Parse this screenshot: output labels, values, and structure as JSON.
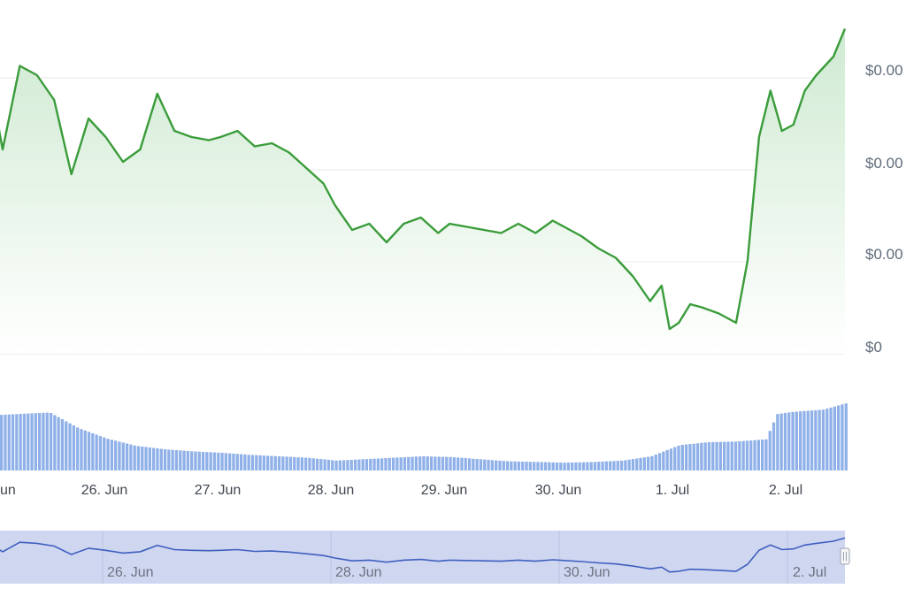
{
  "chart_data": {
    "type": "area",
    "subtype": "price-with-volume",
    "yaxis": {
      "position": "right",
      "tick_labels": [
        "$0.00",
        "$0.00",
        "$0.00",
        "$0"
      ],
      "grid": true
    },
    "price_series": {
      "color": "#3a9c3a",
      "fill_top": "#cfead2",
      "days": [
        25.0,
        25.1,
        25.25,
        25.4,
        25.55,
        25.7,
        25.85,
        26.0,
        26.15,
        26.3,
        26.45,
        26.6,
        26.75,
        26.9,
        27.0,
        27.15,
        27.3,
        27.45,
        27.6,
        27.75,
        27.9,
        28.0,
        28.15,
        28.3,
        28.45,
        28.6,
        28.75,
        28.9,
        29.0,
        29.15,
        29.3,
        29.45,
        29.6,
        29.75,
        29.9,
        30.0,
        30.15,
        30.3,
        30.45,
        30.6,
        30.75,
        30.85,
        30.92,
        31.0,
        31.1,
        31.2,
        31.35,
        31.5,
        31.6,
        31.7,
        31.8,
        31.9,
        32.0,
        32.1,
        32.2,
        32.35,
        32.45
      ],
      "relative_values": [
        0.86,
        0.66,
        0.93,
        0.9,
        0.82,
        0.58,
        0.76,
        0.7,
        0.62,
        0.66,
        0.84,
        0.72,
        0.7,
        0.69,
        0.7,
        0.72,
        0.67,
        0.68,
        0.65,
        0.6,
        0.55,
        0.48,
        0.4,
        0.42,
        0.36,
        0.42,
        0.44,
        0.39,
        0.42,
        0.41,
        0.4,
        0.39,
        0.42,
        0.39,
        0.43,
        0.41,
        0.38,
        0.34,
        0.31,
        0.25,
        0.17,
        0.22,
        0.08,
        0.1,
        0.16,
        0.15,
        0.13,
        0.1,
        0.3,
        0.7,
        0.85,
        0.72,
        0.74,
        0.85,
        0.9,
        0.96,
        1.05
      ]
    },
    "volume_series": {
      "color": "#8fb0e8",
      "days": [
        25.0,
        25.25,
        25.5,
        25.75,
        26.0,
        26.25,
        26.5,
        26.75,
        27.0,
        27.25,
        27.5,
        27.75,
        28.0,
        28.25,
        28.5,
        28.75,
        29.0,
        29.25,
        29.5,
        29.75,
        30.0,
        30.25,
        30.5,
        30.75,
        31.0,
        31.25,
        31.5,
        31.75,
        31.85,
        32.0,
        32.25,
        32.45
      ],
      "relative_values": [
        0.78,
        0.8,
        0.82,
        0.6,
        0.45,
        0.35,
        0.3,
        0.27,
        0.25,
        0.22,
        0.2,
        0.18,
        0.14,
        0.16,
        0.18,
        0.2,
        0.19,
        0.16,
        0.13,
        0.12,
        0.11,
        0.12,
        0.14,
        0.2,
        0.36,
        0.4,
        0.41,
        0.44,
        0.8,
        0.83,
        0.86,
        0.95
      ]
    },
    "xaxis": {
      "tick_labels": [
        "26. Jun",
        "27. Jun",
        "28. Jun",
        "29. Jun",
        "30. Jun",
        "1. Jul",
        "2. Jul"
      ],
      "edge_label": "un"
    },
    "navigator": {
      "tick_labels": [
        "26. Jun",
        "28. Jun",
        "30. Jun",
        "2. Jul"
      ],
      "line_color": "#3f5fbf",
      "mask_color": "#cfd6f0",
      "handle_icon": "grip-handle-icon"
    }
  }
}
